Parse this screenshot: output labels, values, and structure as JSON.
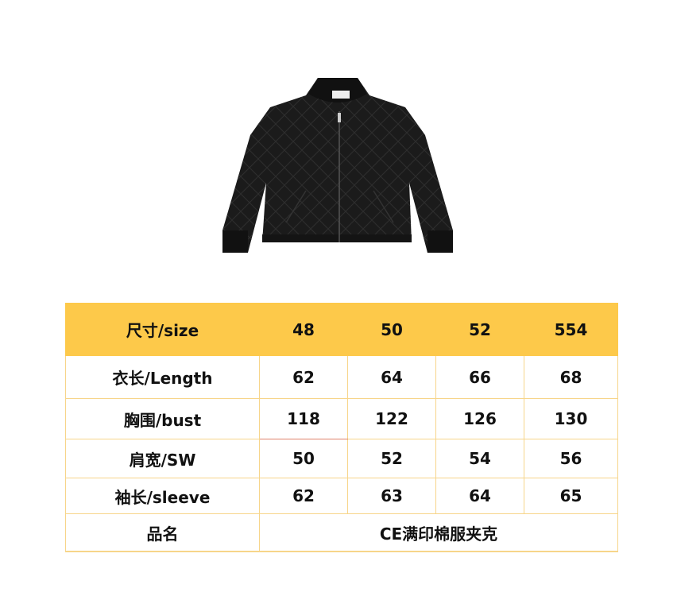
{
  "product_image": {
    "alt_icon": "black-quilted-jacket"
  },
  "table": {
    "header": {
      "label": "尺寸/size",
      "sizes": [
        "48",
        "50",
        "52",
        "554"
      ]
    },
    "rows": [
      {
        "label": "衣长/Length",
        "values": [
          "62",
          "64",
          "66",
          "68"
        ]
      },
      {
        "label": "胸围/bust",
        "values": [
          "118",
          "122",
          "126",
          "130"
        ]
      },
      {
        "label": "肩宽/SW",
        "values": [
          "50",
          "52",
          "54",
          "56"
        ]
      },
      {
        "label": "袖长/sleeve",
        "values": [
          "62",
          "63",
          "64",
          "65"
        ]
      }
    ],
    "name_row": {
      "label": "品名",
      "value": "CE满印棉服夹克"
    }
  },
  "colors": {
    "header_bg": "#fdc94a",
    "border": "#f7d58a"
  }
}
